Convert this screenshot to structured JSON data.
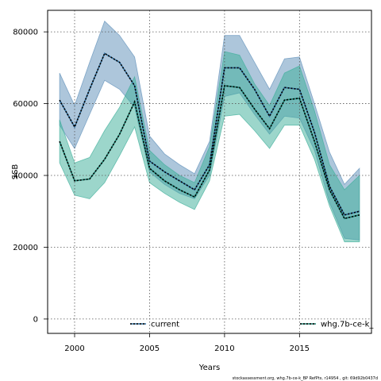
{
  "chart_data": {
    "type": "area",
    "title": "",
    "xlabel": "Years",
    "ylabel": "SSB",
    "xlim": [
      1998.2,
      2019.8
    ],
    "ylim": [
      -4000,
      86000
    ],
    "x_ticks": [
      2000,
      2005,
      2010,
      2015
    ],
    "y_ticks": [
      0,
      20000,
      40000,
      60000,
      80000
    ],
    "grid": true,
    "legend_placement": "bottom",
    "x": [
      1999,
      2000,
      2001,
      2002,
      2003,
      2004,
      2005,
      2006,
      2007,
      2008,
      2009,
      2010,
      2011,
      2012,
      2013,
      2014,
      2015,
      2016,
      2017,
      2018,
      2019
    ],
    "series": [
      {
        "name": "current",
        "color": "#2f6fa0",
        "band_color": "#5b8db8",
        "values": [
          61000,
          53500,
          64000,
          74000,
          71500,
          65000,
          44000,
          41000,
          38500,
          36000,
          43000,
          70000,
          70000,
          64000,
          56500,
          64500,
          64000,
          52000,
          37000,
          29000,
          30000
        ],
        "lower": [
          54000,
          47500,
          57000,
          66500,
          64000,
          59000,
          41000,
          37500,
          35000,
          33500,
          40000,
          62000,
          63000,
          57000,
          51500,
          56500,
          56000,
          47000,
          32500,
          22500,
          22000
        ],
        "upper": [
          68500,
          59500,
          71500,
          83000,
          79000,
          73000,
          51000,
          46000,
          43000,
          40500,
          49500,
          79000,
          79000,
          71500,
          64000,
          72500,
          73000,
          60000,
          46500,
          37500,
          42000
        ]
      },
      {
        "name": "whg.7b-ce-k_",
        "color": "#1a8070",
        "band_color": "#3aae98",
        "values": [
          49500,
          38500,
          39000,
          44500,
          51500,
          60500,
          42000,
          38500,
          36000,
          34000,
          41500,
          65000,
          64500,
          58500,
          53000,
          61000,
          61500,
          49500,
          36000,
          28000,
          29000
        ],
        "lower": [
          43500,
          34500,
          33500,
          38000,
          45500,
          53500,
          38000,
          35000,
          32500,
          30500,
          38500,
          56500,
          57000,
          52500,
          47500,
          54000,
          54000,
          44500,
          31500,
          21500,
          21500
        ],
        "upper": [
          55500,
          43500,
          45000,
          52500,
          59000,
          67500,
          47000,
          43000,
          40000,
          38000,
          48000,
          74500,
          73500,
          65500,
          59500,
          68500,
          70500,
          58000,
          43000,
          36000,
          40000
        ]
      }
    ],
    "credit": "stockassessment.org, whg.7b-ce-k_BP RefPts, r14954 , git: 69d92b0437d"
  }
}
